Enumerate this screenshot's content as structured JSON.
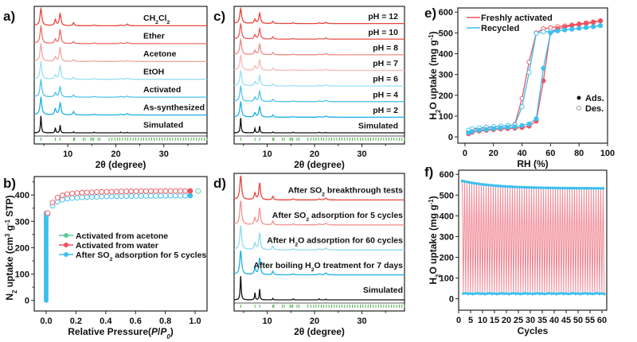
{
  "figure": {
    "panel_labels": [
      "a)",
      "b)",
      "c)",
      "d)",
      "e)",
      "f)"
    ]
  },
  "chart_data": [
    {
      "id": "a",
      "type": "line",
      "title": "",
      "xlabel": "2θ (degree)",
      "ylabel": "",
      "xlim": [
        3,
        39
      ],
      "xticks": [
        10,
        20,
        30
      ],
      "peaks_2theta": [
        4.4,
        7.4,
        8.4,
        11.2,
        22.4
      ],
      "series": [
        {
          "name": "CH2Cl2",
          "label_main": "CH",
          "label_parts": [
            "CH",
            "2",
            "Cl",
            "2"
          ],
          "color": "#e8453c",
          "peak_heights": [
            1.0,
            0.35,
            0.7,
            0.18,
            0.1
          ]
        },
        {
          "name": "Ether",
          "label_parts": [
            "Ether"
          ],
          "color": "#ef7068",
          "peak_heights": [
            1.0,
            0.25,
            0.8,
            0.12,
            0.07
          ]
        },
        {
          "name": "Acetone",
          "label_parts": [
            "Acetone"
          ],
          "color": "#f6a8a4",
          "peak_heights": [
            1.0,
            0.25,
            0.8,
            0.1,
            0.06
          ]
        },
        {
          "name": "EtOH",
          "label_parts": [
            "EtOH"
          ],
          "color": "#9cdff4",
          "peak_heights": [
            1.0,
            0.25,
            0.8,
            0.12,
            0.06
          ]
        },
        {
          "name": "Activated",
          "label_parts": [
            "Activated"
          ],
          "color": "#4fc4ec",
          "peak_heights": [
            1.0,
            0.25,
            0.6,
            0.12,
            0.06
          ]
        },
        {
          "name": "As-synthesized",
          "label_parts": [
            "As-synthesized"
          ],
          "color": "#1fb0e6",
          "peak_heights": [
            1.0,
            0.35,
            0.7,
            0.2,
            0.08
          ]
        },
        {
          "name": "Simulated",
          "label_parts": [
            "Simulated"
          ],
          "color": "#111111",
          "peak_heights": [
            1.0,
            0.3,
            0.45,
            0.06,
            0.03
          ]
        }
      ],
      "reference_ticks_color": "#3aa63a"
    },
    {
      "id": "b",
      "type": "scatter",
      "title": "",
      "xlabel": "Relative Pressure(P/P0)",
      "xlabel_parts": [
        "Relative Pressure(",
        "P",
        "/",
        "P",
        "0",
        ")"
      ],
      "ylabel": "N2 uptake (cm3 g-1 STP)",
      "xlim": [
        -0.08,
        1.08
      ],
      "ylim": [
        -40,
        470
      ],
      "xticks": [
        "0.0",
        "0.2",
        "0.4",
        "0.6",
        "0.8",
        "1.0"
      ],
      "yticks": [
        0,
        100,
        200,
        300,
        400
      ],
      "legend_position": "center",
      "series": [
        {
          "name": "Activated from acetone",
          "color": "#5cc99a",
          "plateau": 412
        },
        {
          "name": "Activated from water",
          "color": "#f0525e",
          "plateau": 412
        },
        {
          "name": "After SO2 adsorption for 5 cycles",
          "color": "#3cc0ee",
          "plateau": 395
        }
      ]
    },
    {
      "id": "c",
      "type": "line",
      "title": "",
      "xlabel": "2θ (degree)",
      "xlim": [
        3,
        39
      ],
      "xticks": [
        10,
        20,
        30
      ],
      "series": [
        {
          "name": "pH = 12",
          "color": "#e8453c"
        },
        {
          "name": "pH = 10",
          "color": "#ec5c54"
        },
        {
          "name": "pH = 8",
          "color": "#f08a84"
        },
        {
          "name": "pH = 7",
          "color": "#f8bcb8"
        },
        {
          "name": "pH = 6",
          "color": "#9cdff4"
        },
        {
          "name": "pH = 4",
          "color": "#4fc4ec"
        },
        {
          "name": "pH = 2",
          "color": "#1fb0e6"
        },
        {
          "name": "Simulated",
          "color": "#111111"
        }
      ]
    },
    {
      "id": "d",
      "type": "line",
      "title": "",
      "xlabel": "2θ (degree)",
      "xlim": [
        3,
        39
      ],
      "xticks": [
        10,
        20,
        30
      ],
      "series": [
        {
          "name": "After SO2 breakthrough tests",
          "parts": [
            "After SO",
            "2",
            " breakthrough tests"
          ],
          "color": "#e8453c"
        },
        {
          "name": "After SO2 adsorption for 5 cycles",
          "parts": [
            "After SO",
            "2",
            " adsorption for 5 cycles"
          ],
          "color": "#f29490"
        },
        {
          "name": "After H2O adsorption for 60 cycles",
          "parts": [
            "After H",
            "2",
            "O adsorption for 60 cycles"
          ],
          "color": "#8fd9f2"
        },
        {
          "name": "After boiling H2O treatment for 7 days",
          "parts": [
            "After boiling H",
            "2",
            "O treatment for 7 days"
          ],
          "color": "#1fb0e6"
        },
        {
          "name": "Simulated",
          "parts": [
            "Simulated"
          ],
          "color": "#111111"
        }
      ]
    },
    {
      "id": "e",
      "type": "line",
      "title": "",
      "xlabel": "RH (%)",
      "ylabel": "H2O uptake (mg g-1)",
      "xlim": [
        -5,
        100
      ],
      "ylim": [
        -30,
        620
      ],
      "xticks": [
        0,
        20,
        40,
        60,
        80,
        100
      ],
      "yticks": [
        0,
        100,
        200,
        300,
        400,
        500,
        600
      ],
      "legend": [
        "Freshly activated",
        "Recycled"
      ],
      "marker_legend": [
        "Ads.",
        "Des."
      ],
      "series": [
        {
          "name": "Freshly activated",
          "color": "#f0525e",
          "ads": {
            "x": [
              2.5,
              5,
              10,
              15,
              20,
              25,
              30,
              35,
              40,
              45,
              50,
              55,
              60,
              65,
              70,
              75,
              80,
              85,
              90,
              95
            ],
            "y": [
              15,
              22,
              28,
              32,
              35,
              38,
              40,
              42,
              45,
              52,
              76,
              270,
              505,
              520,
              528,
              535,
              540,
              545,
              550,
              558
            ]
          },
          "des": {
            "x": [
              95,
              90,
              85,
              80,
              75,
              70,
              65,
              60,
              55,
              50,
              45,
              40,
              35,
              30,
              25,
              20,
              15,
              10,
              5,
              2.5
            ],
            "y": [
              558,
              553,
              548,
              543,
              538,
              534,
              530,
              525,
              520,
              500,
              360,
              185,
              60,
              55,
              52,
              48,
              45,
              40,
              35,
              30
            ]
          }
        },
        {
          "name": "Recycled",
          "color": "#3cc0ee",
          "ads": {
            "x": [
              2.5,
              5,
              10,
              15,
              20,
              25,
              30,
              35,
              40,
              45,
              50,
              55,
              60,
              65,
              70,
              75,
              80,
              85,
              90,
              95
            ],
            "y": [
              20,
              26,
              32,
              36,
              40,
              43,
              46,
              48,
              55,
              62,
              88,
              330,
              500,
              510,
              515,
              518,
              522,
              526,
              530,
              535
            ]
          },
          "des": {
            "x": [
              95,
              90,
              85,
              80,
              75,
              70,
              65,
              60,
              55,
              50,
              45,
              40,
              35,
              30,
              25,
              20,
              15,
              10,
              5,
              2.5
            ],
            "y": [
              535,
              530,
              526,
              522,
              518,
              514,
              510,
              507,
              505,
              498,
              310,
              145,
              58,
              55,
              52,
              50,
              47,
              44,
              40,
              33
            ]
          }
        }
      ]
    },
    {
      "id": "f",
      "type": "line",
      "title": "",
      "xlabel": "Cycles",
      "ylabel": "H2O uptake (mg g-1)",
      "xlim": [
        0,
        62
      ],
      "ylim": [
        -55,
        620
      ],
      "xticks": [
        0,
        5,
        10,
        15,
        20,
        25,
        30,
        35,
        40,
        45,
        50,
        55,
        60
      ],
      "yticks": [
        0,
        100,
        200,
        300,
        400,
        500,
        600
      ],
      "cycles": 60,
      "ads_start": 568,
      "ads_end": 532,
      "des_level": 25,
      "line_color": "#f08a96",
      "marker_color": "#3cc0ee"
    }
  ]
}
